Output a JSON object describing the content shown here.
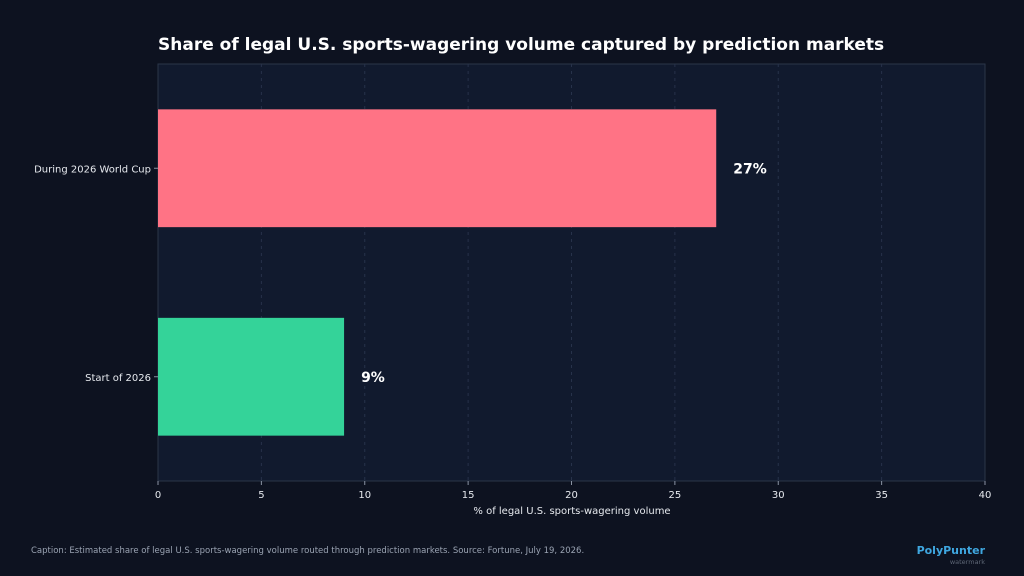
{
  "chart_data": {
    "type": "bar",
    "orientation": "horizontal",
    "title": "Share of legal U.S. sports-wagering volume captured by prediction markets",
    "xlabel": "% of legal U.S. sports-wagering volume",
    "ylabel": "",
    "xlim": [
      0,
      40
    ],
    "xticks": [
      0,
      5,
      10,
      15,
      20,
      25,
      30,
      35,
      40
    ],
    "categories": [
      "During 2026 World Cup",
      "Start of 2026"
    ],
    "values": [
      27,
      9
    ],
    "data_labels": [
      "27%",
      "9%"
    ],
    "colors": [
      "#ff7385",
      "#34d399"
    ],
    "grid": "vertical-dashed"
  },
  "caption": "Caption: Estimated share of legal U.S. sports-wagering volume routed through prediction markets. Source: Fortune, July 19, 2026.",
  "branding": {
    "name": "PolyPunter",
    "sub": "watermark"
  },
  "colors": {
    "background": "#0d1220",
    "plot_background": "#111a2e",
    "text": "#e6e9ee"
  }
}
